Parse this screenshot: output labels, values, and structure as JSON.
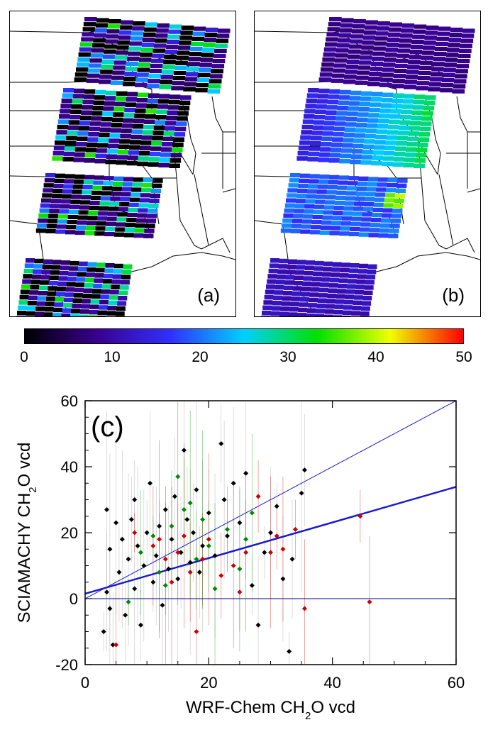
{
  "panels": [
    {
      "label": "(a)",
      "kind": "SCIAMACHY observations"
    },
    {
      "label": "(b)",
      "kind": "WRF-Chem model"
    }
  ],
  "colorbar": {
    "ticks": [
      "0",
      "10",
      "20",
      "30",
      "40",
      "50"
    ],
    "range": [
      0,
      50
    ],
    "colors": [
      "#000000",
      "#3a0090",
      "#3030ff",
      "#00d0ff",
      "#00e000",
      "#f0ff00",
      "#ff0000"
    ]
  },
  "chart_data": {
    "type": "scatter",
    "panel_label": "(c)",
    "xlabel": "WRF-Chem CH2O vcd",
    "ylabel": "SCIAMACHY CH2O vcd",
    "xlim": [
      0,
      60
    ],
    "ylim": [
      -20,
      60
    ],
    "x_ticks": [
      "0",
      "20",
      "40",
      "60"
    ],
    "y_ticks": [
      "-20",
      "0",
      "20",
      "40",
      "60"
    ],
    "grid": false,
    "series": [
      {
        "color": "#000000",
        "points": [
          [
            3.0,
            -10
          ],
          [
            3.5,
            2
          ],
          [
            3.5,
            27
          ],
          [
            4,
            -3
          ],
          [
            4,
            15
          ],
          [
            4.5,
            -14
          ],
          [
            5,
            23
          ],
          [
            5.5,
            8
          ],
          [
            6,
            18
          ],
          [
            6.5,
            -5
          ],
          [
            7,
            12
          ],
          [
            7.5,
            24
          ],
          [
            8,
            3
          ],
          [
            8,
            30
          ],
          [
            8.5,
            16
          ],
          [
            9,
            -8
          ],
          [
            9.5,
            10
          ],
          [
            10,
            20
          ],
          [
            10.5,
            35
          ],
          [
            11,
            5
          ],
          [
            11.5,
            13
          ],
          [
            12,
            22
          ],
          [
            12.5,
            -2
          ],
          [
            13,
            27
          ],
          [
            13.5,
            9
          ],
          [
            14,
            18
          ],
          [
            14.5,
            31
          ],
          [
            15,
            6
          ],
          [
            15.5,
            14
          ],
          [
            16,
            45
          ],
          [
            16.5,
            24
          ],
          [
            17,
            11
          ],
          [
            17.5,
            20
          ],
          [
            18,
            33
          ],
          [
            18.5,
            8
          ],
          [
            19,
            16
          ],
          [
            20,
            26
          ],
          [
            21,
            13
          ],
          [
            22,
            47
          ],
          [
            22.5,
            30
          ],
          [
            23,
            19
          ],
          [
            24,
            35
          ],
          [
            25,
            23
          ],
          [
            26,
            38
          ],
          [
            27,
            4
          ],
          [
            28,
            -8
          ],
          [
            29,
            14
          ],
          [
            30,
            20
          ],
          [
            31,
            28
          ],
          [
            32,
            6
          ],
          [
            33,
            -16
          ],
          [
            33.5,
            12
          ],
          [
            35,
            32
          ],
          [
            35.5,
            39
          ]
        ]
      },
      {
        "color": "#cc0000",
        "points": [
          [
            5,
            -14
          ],
          [
            8,
            20
          ],
          [
            11,
            16
          ],
          [
            12,
            18
          ],
          [
            13,
            12
          ],
          [
            14,
            5
          ],
          [
            15,
            14
          ],
          [
            16,
            19
          ],
          [
            17,
            8
          ],
          [
            18,
            -10
          ],
          [
            19,
            12
          ],
          [
            20,
            18
          ],
          [
            22,
            7
          ],
          [
            24,
            10
          ],
          [
            25,
            2
          ],
          [
            26,
            14
          ],
          [
            28,
            31
          ],
          [
            30,
            14
          ],
          [
            31,
            19
          ],
          [
            32,
            15
          ],
          [
            34,
            21
          ],
          [
            35.5,
            -3
          ],
          [
            44.5,
            25
          ],
          [
            46,
            -1
          ]
        ]
      },
      {
        "color": "#008800",
        "points": [
          [
            7,
            -1
          ],
          [
            9,
            14
          ],
          [
            11,
            19
          ],
          [
            12,
            8
          ],
          [
            13,
            4
          ],
          [
            14,
            22
          ],
          [
            15,
            37
          ],
          [
            16,
            27
          ],
          [
            17,
            29
          ],
          [
            18,
            12
          ],
          [
            19,
            24
          ],
          [
            20,
            16
          ],
          [
            21,
            3
          ],
          [
            23,
            21
          ],
          [
            25,
            9
          ],
          [
            26,
            18
          ],
          [
            27,
            26
          ]
        ]
      }
    ],
    "lines": [
      {
        "name": "1:1",
        "slope": 1,
        "intercept": 0,
        "width": 1
      },
      {
        "name": "fit",
        "slope": 0.54,
        "intercept": 1.5,
        "width": 2.5
      },
      {
        "name": "zero",
        "slope": 0,
        "intercept": 0,
        "width": 1
      }
    ]
  }
}
